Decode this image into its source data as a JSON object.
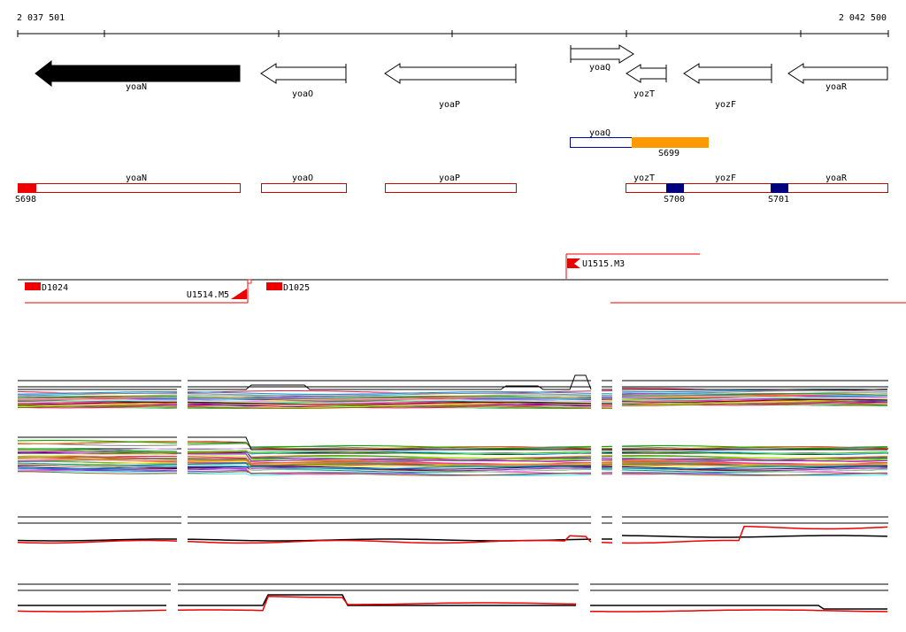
{
  "coords": {
    "start_label": "2 037 501",
    "end_label": "2 042 500",
    "start": 2037501,
    "end": 2042500
  },
  "genes": [
    {
      "name": "yoaN",
      "start": 2037501,
      "end": 2038780,
      "strand": "-",
      "filled": true
    },
    {
      "name": "yoaO",
      "start": 2038870,
      "end": 2039370,
      "strand": "-",
      "filled": false
    },
    {
      "name": "yoaP",
      "start": 2039580,
      "end": 2040340,
      "strand": "-",
      "filled": false
    },
    {
      "name": "yoaQ",
      "start": 2040640,
      "end": 2041000,
      "strand": "+",
      "filled": false
    },
    {
      "name": "yozT",
      "start": 2040860,
      "end": 2041070,
      "strand": "-",
      "filled": false
    },
    {
      "name": "yozF",
      "start": 2041200,
      "end": 2041710,
      "strand": "-",
      "filled": false
    },
    {
      "name": "yoaR",
      "start": 2041800,
      "end": 2042500,
      "strand": "-",
      "filled": false
    }
  ],
  "transcripts_upper": {
    "label": "yoaQ",
    "segment": "S699"
  },
  "transcripts_lower": {
    "labels": [
      "yoaN",
      "yoaO",
      "yoaP",
      "yozT",
      "yozF",
      "yoaR"
    ],
    "segments": [
      "S698",
      "S700",
      "S701"
    ]
  },
  "regulatory": {
    "promoters": [
      "U1515.M3",
      "U1514.M5"
    ],
    "domains": [
      "D1024",
      "D1025"
    ]
  },
  "colors": {
    "gene_outline": "#000000",
    "transcript_outline": "#cc0000",
    "segment_red": "#ee0000",
    "segment_orange": "#ff9900",
    "segment_navy": "#000080",
    "mean_red": "#ee0000"
  }
}
